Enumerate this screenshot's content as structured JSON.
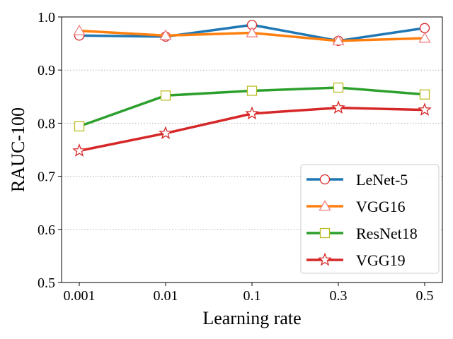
{
  "chart_data": {
    "type": "line",
    "title": "",
    "xlabel": "Learning rate",
    "ylabel": "RAUC-100",
    "categories": [
      "0.001",
      "0.01",
      "0.1",
      "0.3",
      "0.5"
    ],
    "ylim": [
      0.5,
      1.0
    ],
    "yticks": [
      "0.5",
      "0.6",
      "0.7",
      "0.8",
      "0.9",
      "1.0"
    ],
    "grid": "horizontal dotted",
    "legend_position": "bottom-right",
    "series": [
      {
        "name": "LeNet-5",
        "values": [
          0.965,
          0.963,
          0.985,
          0.955,
          0.979
        ],
        "color": "#1f77b4",
        "marker": "circle",
        "marker_edge": "#d62728"
      },
      {
        "name": "VGG16",
        "values": [
          0.974,
          0.965,
          0.97,
          0.955,
          0.96
        ],
        "color": "#ff7f0e",
        "marker": "triangle",
        "marker_edge": "#f08080"
      },
      {
        "name": "ResNet18",
        "values": [
          0.794,
          0.852,
          0.861,
          0.867,
          0.854
        ],
        "color": "#2ca02c",
        "marker": "square",
        "marker_edge": "#bcbd22"
      },
      {
        "name": "VGG19",
        "values": [
          0.748,
          0.781,
          0.818,
          0.829,
          0.825
        ],
        "color": "#d62728",
        "marker": "star",
        "marker_edge": "#d62728"
      }
    ]
  }
}
